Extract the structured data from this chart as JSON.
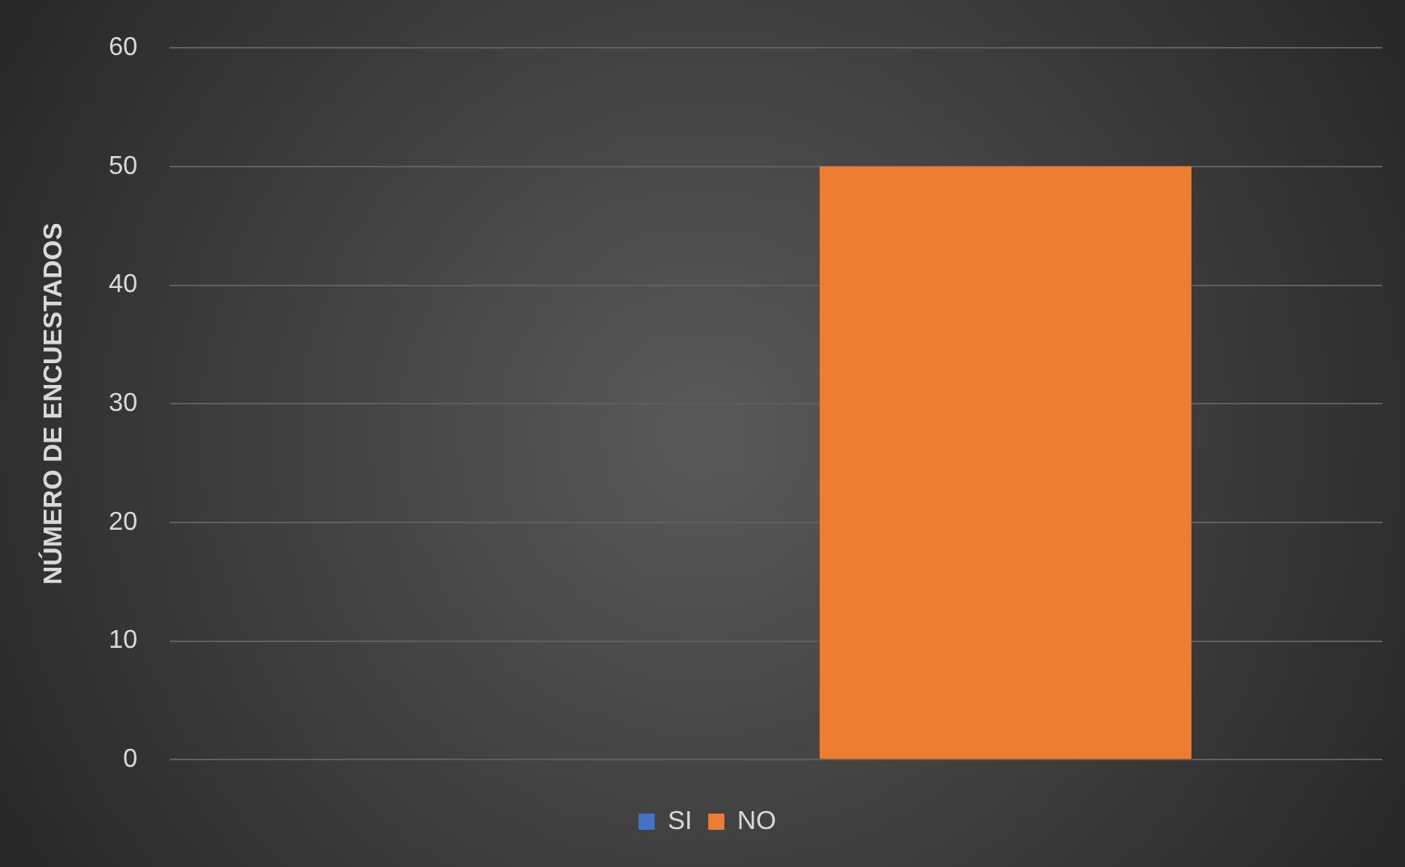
{
  "chart_data": {
    "type": "bar",
    "ylabel": "NÚMERO DE ENCUESTADOS",
    "categories": [
      null
    ],
    "series": [
      {
        "name": "SI",
        "color": "#4472c4",
        "values": [
          0
        ]
      },
      {
        "name": "NO",
        "color": "#ed7d31",
        "values": [
          50
        ]
      }
    ],
    "ylim": [
      0,
      60
    ],
    "yticks": [
      0,
      10,
      20,
      30,
      40,
      50,
      60
    ],
    "grid": "y",
    "legend": "bottom"
  }
}
